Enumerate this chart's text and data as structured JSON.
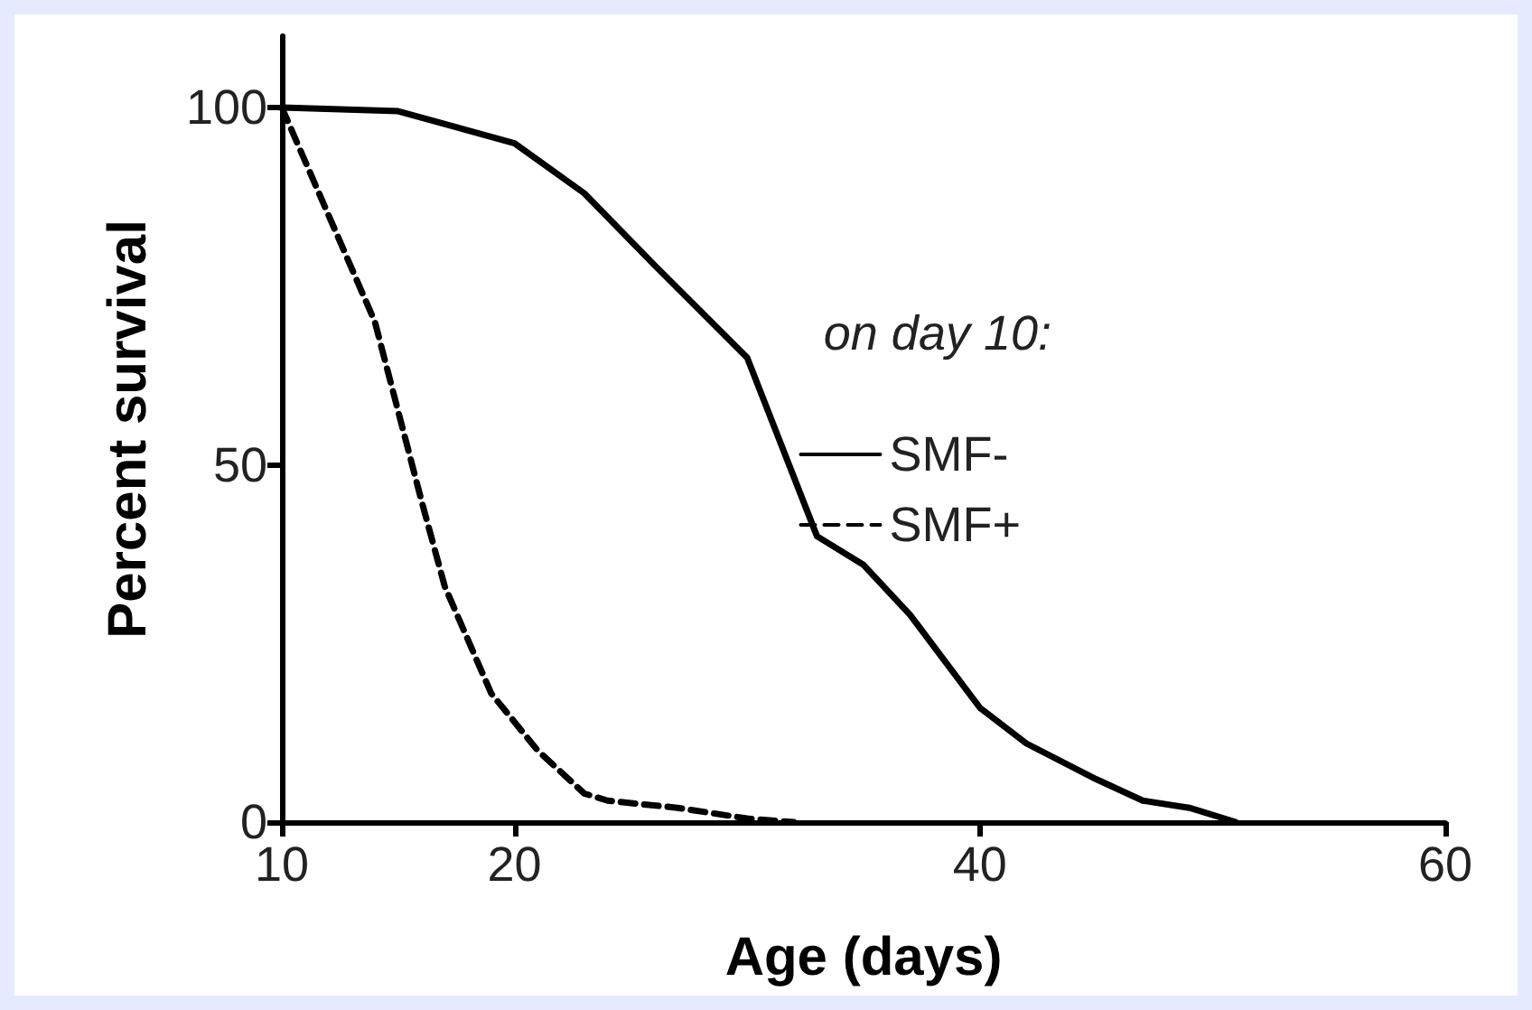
{
  "chart_data": {
    "type": "line",
    "xlabel": "Age (days)",
    "ylabel": "Percent survival",
    "legend_title": "on day 10:",
    "legend": "right",
    "marker": "none",
    "grid": false,
    "xlim": [
      10,
      60
    ],
    "xticks": [
      10,
      20,
      40,
      60
    ],
    "ylim": [
      0,
      110
    ],
    "yticks": [
      0,
      50,
      100
    ],
    "series": [
      {
        "name": "SMF-",
        "color": "#000000",
        "line_style": "solid",
        "x": [
          10,
          15,
          20,
          23,
          26,
          30,
          33,
          35,
          37,
          40,
          42,
          45,
          47,
          49,
          51
        ],
        "values": [
          100,
          99.5,
          95,
          88,
          78,
          65,
          40,
          36,
          29,
          16,
          11,
          6,
          3,
          2,
          0
        ]
      },
      {
        "name": "SMF+",
        "color": "#000000",
        "line_style": "dashed",
        "x": [
          10,
          12,
          14,
          16,
          17,
          19,
          21,
          23,
          24,
          27,
          30,
          32
        ],
        "values": [
          100,
          85,
          70,
          45,
          33,
          18,
          10,
          4,
          3,
          2,
          0.5,
          0
        ]
      }
    ]
  }
}
